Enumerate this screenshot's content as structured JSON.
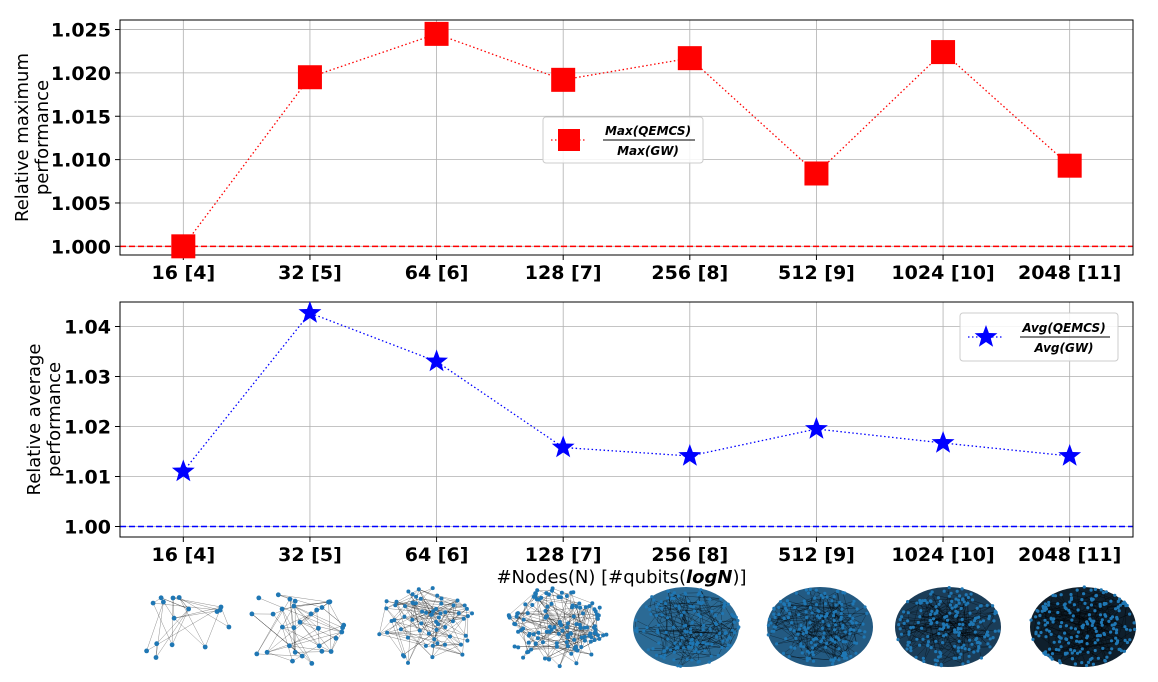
{
  "chart_data": [
    {
      "type": "line",
      "ylabel": [
        "Relative maximum",
        "performance"
      ],
      "xlabel": "",
      "categories": [
        "16 [4]",
        "32 [5]",
        "64 [6]",
        "128 [7]",
        "256 [8]",
        "512 [9]",
        "1024 [10]",
        "2048 [11]"
      ],
      "series": [
        {
          "name": "Max(QEMCS) / Max(GW)",
          "legend_num": "Max(QEMCS)",
          "legend_den": "Max(GW)",
          "marker": "square",
          "linestyle": "dotted",
          "color": "#ff0000",
          "values": [
            1.0,
            1.0195,
            1.0245,
            1.0192,
            1.0217,
            1.0084,
            1.0224,
            1.0093
          ]
        }
      ],
      "reference_line": {
        "value": 1.0,
        "style": "dashed",
        "color": "#ff0000"
      },
      "ylim": [
        0.999,
        1.0261
      ],
      "yticks": [
        1.0,
        1.005,
        1.01,
        1.015,
        1.02,
        1.025
      ],
      "ytick_labels": [
        "1.000",
        "1.005",
        "1.010",
        "1.015",
        "1.020",
        "1.025"
      ],
      "grid": true,
      "legend_position": "center-right"
    },
    {
      "type": "line",
      "ylabel": [
        "Relative average",
        "performance"
      ],
      "xlabel": "#Nodes(N) [#qubits(logN)]",
      "xlabel_parts": {
        "pre": "#Nodes(N) [#qubits(",
        "emph": "logN",
        "post": ")]"
      },
      "categories": [
        "16 [4]",
        "32 [5]",
        "64 [6]",
        "128 [7]",
        "256 [8]",
        "512 [9]",
        "1024 [10]",
        "2048 [11]"
      ],
      "series": [
        {
          "name": "Avg(QEMCS) / Avg(GW)",
          "legend_num": "Avg(QEMCS)",
          "legend_den": "Avg(GW)",
          "marker": "star",
          "linestyle": "dotted",
          "color": "#0000ff",
          "values": [
            1.011,
            1.0427,
            1.033,
            1.0158,
            1.0141,
            1.0195,
            1.0167,
            1.0141
          ]
        }
      ],
      "reference_line": {
        "value": 1.0,
        "style": "dashed",
        "color": "#0000ff"
      },
      "ylim": [
        0.9979,
        1.0449
      ],
      "yticks": [
        1.0,
        1.01,
        1.02,
        1.03,
        1.04
      ],
      "ytick_labels": [
        "1.00",
        "1.01",
        "1.02",
        "1.03",
        "1.04"
      ],
      "grid": true,
      "legend_position": "top-right"
    }
  ],
  "graph_thumbnails": {
    "node_counts": [
      16,
      32,
      64,
      128,
      256,
      512,
      1024,
      2048
    ],
    "node_color": "#1f77b4",
    "edge_color": "#000000"
  }
}
